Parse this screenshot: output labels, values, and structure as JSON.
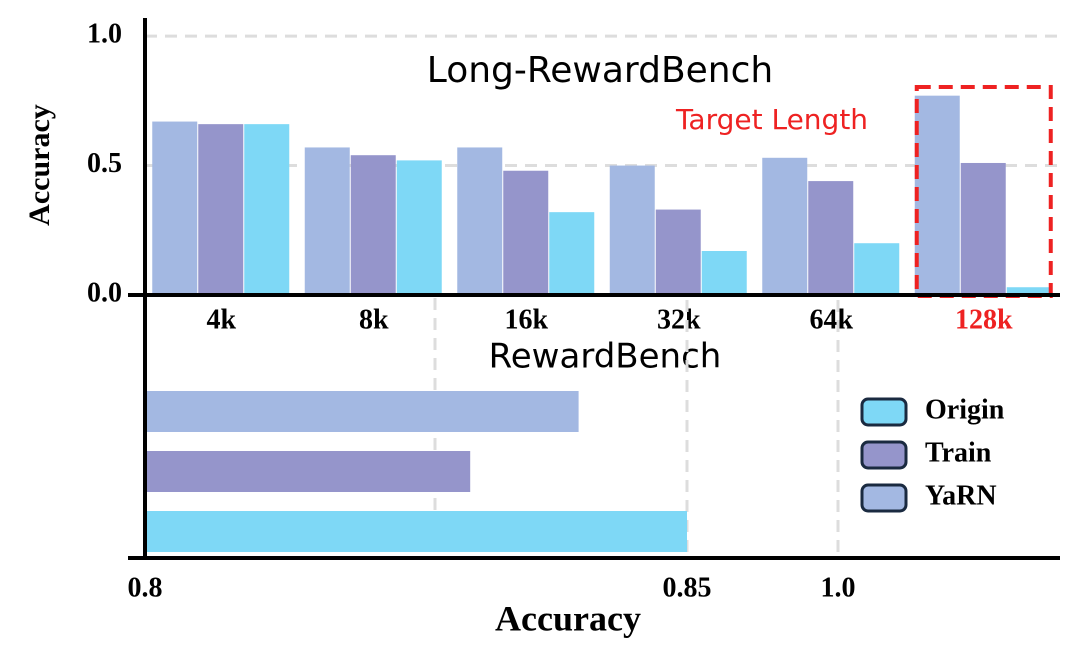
{
  "chart_data": [
    {
      "type": "bar",
      "title": "Long-RewardBench",
      "y_label": "Accuracy",
      "annotation": "Target Length",
      "categories": [
        "4k",
        "8k",
        "16k",
        "32k",
        "64k",
        "128k"
      ],
      "series": [
        {
          "color": "#a3b8e2",
          "values": [
            0.67,
            0.57,
            0.57,
            0.5,
            0.53,
            0.77
          ]
        },
        {
          "color": "#9595cb",
          "values": [
            0.66,
            0.54,
            0.48,
            0.33,
            0.44,
            0.51
          ]
        },
        {
          "color": "#7ed8f6",
          "values": [
            0.66,
            0.52,
            0.32,
            0.17,
            0.2,
            0.03
          ]
        }
      ],
      "ylim": [
        0,
        1.07
      ],
      "yticks": [
        {
          "value": 0,
          "label": "0.0"
        },
        {
          "value": 0.5,
          "label": "0.5"
        },
        {
          "value": 1,
          "label": "1.0"
        }
      ],
      "grid": true
    },
    {
      "type": "barh",
      "title": "RewardBench",
      "x_label": "Accuracy",
      "series": [
        {
          "name": "Origin",
          "color": "#7ed8f6",
          "values": [
            0.85
          ]
        },
        {
          "name": "Train",
          "color": "#9595cb",
          "values": [
            0.83
          ]
        },
        {
          "name": "YaRN",
          "color": "#a3b8e2",
          "values": [
            0.84
          ]
        }
      ],
      "xticks": [
        0.8,
        0.85,
        {
          "value": 1,
          "label": "1.0"
        }
      ],
      "grid": true,
      "legend": "right"
    }
  ]
}
